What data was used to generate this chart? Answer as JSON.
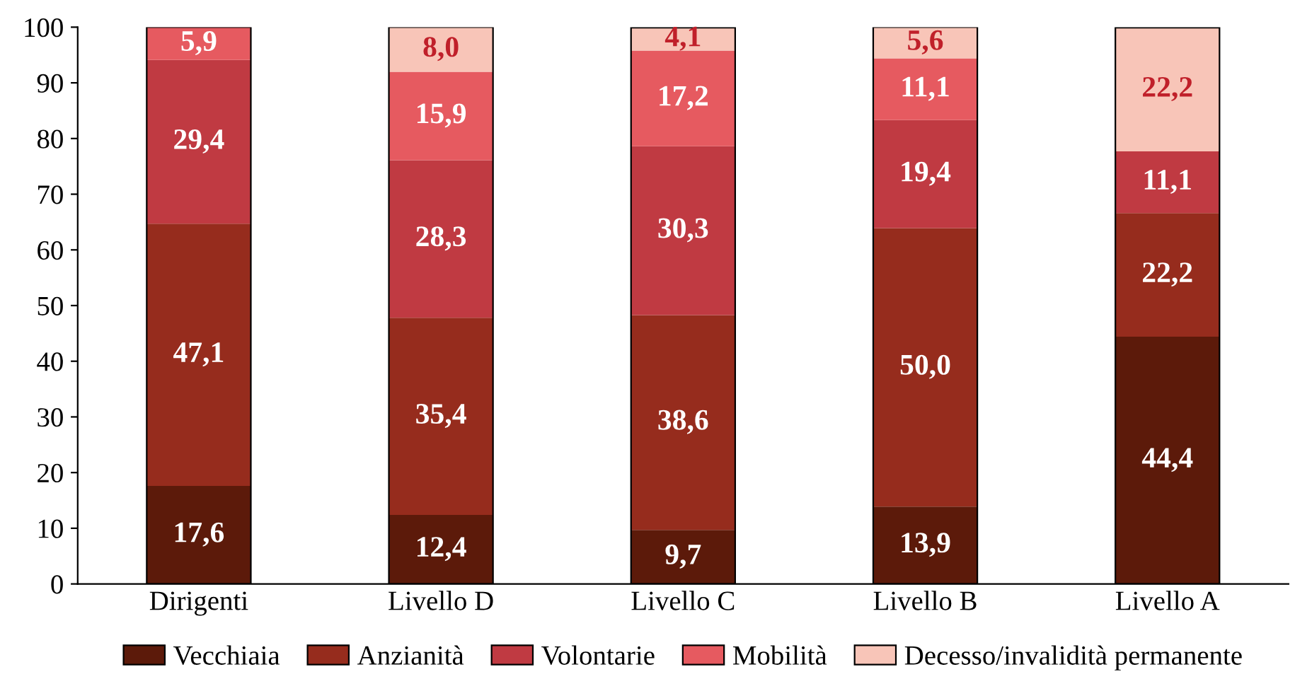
{
  "chart_data": {
    "type": "bar",
    "stacked": true,
    "categories": [
      "Dirigenti",
      "Livello D",
      "Livello C",
      "Livello B",
      "Livello A"
    ],
    "series": [
      {
        "name": "Vecchiaia",
        "color": "#5c1a0a",
        "values": [
          17.6,
          12.4,
          9.7,
          13.9,
          44.4
        ],
        "value_labels": [
          "17,6",
          "12,4",
          "9,7",
          "13,9",
          "44,4"
        ]
      },
      {
        "name": "Anzianità",
        "color": "#962c1d",
        "values": [
          47.1,
          35.4,
          38.6,
          50.0,
          22.2
        ],
        "value_labels": [
          "47,1",
          "35,4",
          "38,6",
          "50,0",
          "22,2"
        ]
      },
      {
        "name": "Volontarie",
        "color": "#c03a42",
        "values": [
          29.4,
          28.3,
          30.3,
          19.4,
          11.1
        ],
        "value_labels": [
          "29,4",
          "28,3",
          "30,3",
          "19,4",
          "11,1"
        ]
      },
      {
        "name": "Mobilità",
        "color": "#e65a60",
        "values": [
          5.9,
          15.9,
          17.2,
          11.1,
          null
        ],
        "value_labels": [
          "5,9",
          "15,9",
          "17,2",
          "11,1",
          null
        ]
      },
      {
        "name": "Decesso/invalidità permanente",
        "color": "#f8c5b8",
        "values": [
          null,
          8.0,
          4.1,
          5.6,
          22.2
        ],
        "value_labels": [
          null,
          "8,0",
          "4,1",
          "5,6",
          "22,2"
        ]
      }
    ],
    "ylim": [
      0,
      100
    ],
    "yticks": [
      0,
      10,
      20,
      30,
      40,
      50,
      60,
      70,
      80,
      90,
      100
    ],
    "grid": false,
    "legend": "bottom"
  }
}
